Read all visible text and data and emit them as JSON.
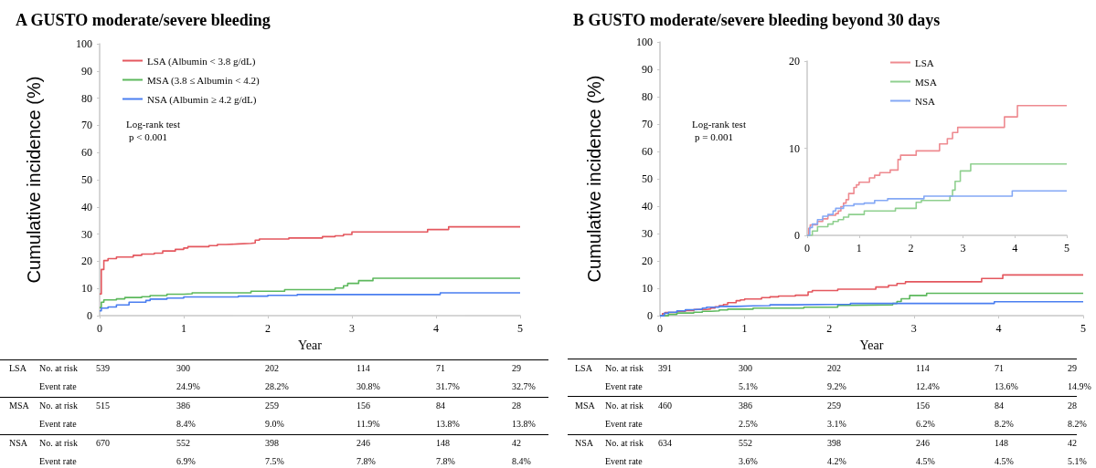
{
  "chart_data": [
    {
      "type": "step",
      "title": "A GUSTO moderate/severe bleeding",
      "xlabel": "Year",
      "ylabel": "Cumulative incidence (%)",
      "xlim": [
        0,
        5
      ],
      "xticks": [
        0,
        1,
        2,
        3,
        4,
        5
      ],
      "ylim": [
        0,
        100
      ],
      "yticks": [
        0,
        10,
        20,
        30,
        40,
        50,
        60,
        70,
        80,
        90,
        100
      ],
      "legend": "top left",
      "marker": "none",
      "annotations": [
        "Log-rank test",
        "p < 0.001"
      ],
      "series": [
        {
          "name": "LSA (Albumin < 3.8 g/dL)",
          "color": "#e4575e",
          "x": [
            0,
            0.02,
            0.05,
            0.1,
            0.2,
            0.4,
            0.5,
            0.65,
            0.75,
            0.9,
            1.0,
            1.05,
            1.3,
            1.4,
            1.5,
            1.65,
            1.8,
            1.85,
            1.9,
            2.25,
            2.65,
            2.8,
            2.9,
            3.0,
            3.9,
            4.15,
            5
          ],
          "values": [
            8,
            17,
            20.3,
            21,
            21.6,
            22.2,
            22.7,
            23,
            23.8,
            24.4,
            24.9,
            25.4,
            25.8,
            26.2,
            26.4,
            26.6,
            26.8,
            27.8,
            28.2,
            28.6,
            29.1,
            29.4,
            29.9,
            30.8,
            31.7,
            32.7,
            32.7
          ]
        },
        {
          "name": "MSA (3.8 ≤ Albumin < 4.2)",
          "color": "#5cb85c",
          "x": [
            0,
            0.02,
            0.05,
            0.2,
            0.3,
            0.5,
            0.6,
            0.8,
            1.0,
            1.1,
            1.8,
            2.2,
            2.8,
            2.9,
            2.95,
            3.08,
            3.25,
            5
          ],
          "values": [
            3,
            5,
            5.8,
            6.2,
            6.7,
            7,
            7.4,
            7.9,
            8.1,
            8.4,
            9.0,
            9.6,
            10.2,
            11.0,
            11.9,
            12.9,
            13.8,
            13.8
          ]
        },
        {
          "name": "NSA (Albumin ≥ 4.2 g/dL)",
          "color": "#4a7ef0",
          "x": [
            0,
            0.02,
            0.1,
            0.2,
            0.35,
            0.55,
            0.6,
            0.8,
            1.0,
            1.65,
            2.0,
            2.35,
            4.05,
            5
          ],
          "values": [
            1.8,
            2.8,
            3.2,
            4.0,
            5.0,
            5.6,
            6.1,
            6.5,
            6.9,
            7.2,
            7.5,
            7.8,
            8.4,
            8.4
          ]
        }
      ]
    },
    {
      "type": "step",
      "title": "B GUSTO moderate/severe bleeding beyond 30 days",
      "xlabel": "Year",
      "ylabel": "Cumulative incidence (%)",
      "xlim": [
        0,
        5
      ],
      "xticks": [
        0,
        1,
        2,
        3,
        4,
        5
      ],
      "ylim": [
        0,
        100
      ],
      "yticks": [
        0,
        10,
        20,
        30,
        40,
        50,
        60,
        70,
        80,
        90,
        100
      ],
      "marker": "none",
      "annotations": [
        "Log-rank test",
        "p = 0.001"
      ],
      "series": [
        {
          "color": "#e4575e",
          "x": [
            0,
            0.03,
            0.06,
            0.2,
            0.3,
            0.4,
            0.55,
            0.6,
            0.65,
            0.7,
            0.75,
            0.8,
            0.9,
            0.95,
            1.0,
            1.2,
            1.3,
            1.4,
            1.6,
            1.75,
            1.8,
            2.1,
            2.55,
            2.7,
            2.8,
            2.9,
            3.8,
            4.05,
            5
          ],
          "values": [
            0,
            0.8,
            1.2,
            1.6,
            1.9,
            2.3,
            2.5,
            2.8,
            3.3,
            3.7,
            4.1,
            4.8,
            5.5,
            5.8,
            6.1,
            6.6,
            6.9,
            7.2,
            7.5,
            8.7,
            9.2,
            9.7,
            10.5,
            11.1,
            11.8,
            12.4,
            13.6,
            14.9,
            14.9
          ]
        },
        {
          "color": "#5cb85c",
          "x": [
            0,
            0.1,
            0.2,
            0.4,
            0.5,
            0.6,
            0.7,
            0.8,
            1.1,
            1.7,
            2.1,
            2.2,
            2.75,
            2.8,
            2.85,
            2.95,
            3.15,
            5
          ],
          "values": [
            0,
            0.5,
            1.0,
            1.3,
            1.6,
            1.8,
            2.1,
            2.4,
            2.8,
            3.1,
            3.8,
            4.0,
            4.5,
            5.2,
            6.2,
            7.4,
            8.2,
            8.2
          ]
        },
        {
          "color": "#4a7ef0",
          "x": [
            0,
            0.05,
            0.1,
            0.2,
            0.3,
            0.4,
            0.5,
            0.55,
            0.7,
            0.9,
            1.1,
            1.3,
            1.55,
            2.25,
            3.95,
            5
          ],
          "values": [
            0,
            0.9,
            1.3,
            1.8,
            2.2,
            2.4,
            2.8,
            3.1,
            3.4,
            3.6,
            3.7,
            4.0,
            4.2,
            4.5,
            5.1,
            5.1
          ]
        }
      ]
    },
    {
      "type": "step",
      "xlim": [
        0,
        5
      ],
      "xticks": [
        0,
        1,
        2,
        3,
        4,
        5
      ],
      "ylim": [
        0,
        20
      ],
      "yticks": [
        0,
        10,
        20
      ],
      "legend": "top",
      "marker": "none",
      "series": [
        {
          "name": "LSA",
          "color": "#ee8a90",
          "x": [
            0,
            0.03,
            0.06,
            0.2,
            0.3,
            0.4,
            0.55,
            0.6,
            0.65,
            0.7,
            0.75,
            0.8,
            0.9,
            0.95,
            1.0,
            1.2,
            1.3,
            1.4,
            1.6,
            1.75,
            1.8,
            2.1,
            2.55,
            2.7,
            2.8,
            2.9,
            3.8,
            4.05,
            5
          ],
          "values": [
            0,
            0.8,
            1.2,
            1.6,
            1.9,
            2.3,
            2.5,
            2.8,
            3.3,
            3.7,
            4.1,
            4.8,
            5.5,
            5.8,
            6.1,
            6.6,
            6.9,
            7.2,
            7.5,
            8.7,
            9.2,
            9.7,
            10.5,
            11.1,
            11.8,
            12.4,
            13.6,
            14.9,
            14.9
          ]
        },
        {
          "name": "MSA",
          "color": "#8fd08f",
          "x": [
            0,
            0.1,
            0.2,
            0.4,
            0.5,
            0.6,
            0.7,
            0.8,
            1.1,
            1.7,
            2.1,
            2.2,
            2.75,
            2.8,
            2.85,
            2.95,
            3.15,
            5
          ],
          "values": [
            0,
            0.5,
            1.0,
            1.3,
            1.6,
            1.8,
            2.1,
            2.4,
            2.8,
            3.1,
            3.8,
            4.0,
            4.5,
            5.2,
            6.2,
            7.4,
            8.2,
            8.2
          ]
        },
        {
          "name": "NSA",
          "color": "#84a8f5",
          "x": [
            0,
            0.05,
            0.1,
            0.2,
            0.3,
            0.4,
            0.5,
            0.55,
            0.7,
            0.9,
            1.1,
            1.3,
            1.55,
            2.25,
            3.95,
            5
          ],
          "values": [
            0,
            0.9,
            1.3,
            1.8,
            2.2,
            2.4,
            2.8,
            3.1,
            3.4,
            3.6,
            3.7,
            4.0,
            4.2,
            4.5,
            5.1,
            5.1
          ]
        }
      ]
    },
    {
      "type": "other",
      "annotations": [
        "LSA",
        "No. at risk",
        "539",
        "300",
        "202",
        "114",
        "71",
        "29",
        "Event rate",
        "24.9%",
        "28.2%",
        "30.8%",
        "31.7%",
        "32.7%",
        "MSA",
        "No. at risk",
        "515",
        "386",
        "259",
        "156",
        "84",
        "28",
        "Event rate",
        "8.4%",
        "9.0%",
        "11.9%",
        "13.8%",
        "13.8%",
        "NSA",
        "No. at risk",
        "670",
        "552",
        "398",
        "246",
        "148",
        "42",
        "Event rate",
        "6.9%",
        "7.5%",
        "7.8%",
        "7.8%",
        "8.4%"
      ]
    },
    {
      "type": "other",
      "annotations": [
        "LSA",
        "No. at risk",
        "391",
        "300",
        "202",
        "114",
        "71",
        "29",
        "Event rate",
        "5.1%",
        "9.2%",
        "12.4%",
        "13.6%",
        "14.9%",
        "MSA",
        "No. at risk",
        "460",
        "386",
        "259",
        "156",
        "84",
        "28",
        "Event rate",
        "2.5%",
        "3.1%",
        "6.2%",
        "8.2%",
        "8.2%",
        "NSA",
        "No. at risk",
        "634",
        "552",
        "398",
        "246",
        "148",
        "42",
        "Event rate",
        "3.6%",
        "4.2%",
        "4.5%",
        "4.5%",
        "5.1%"
      ]
    }
  ]
}
